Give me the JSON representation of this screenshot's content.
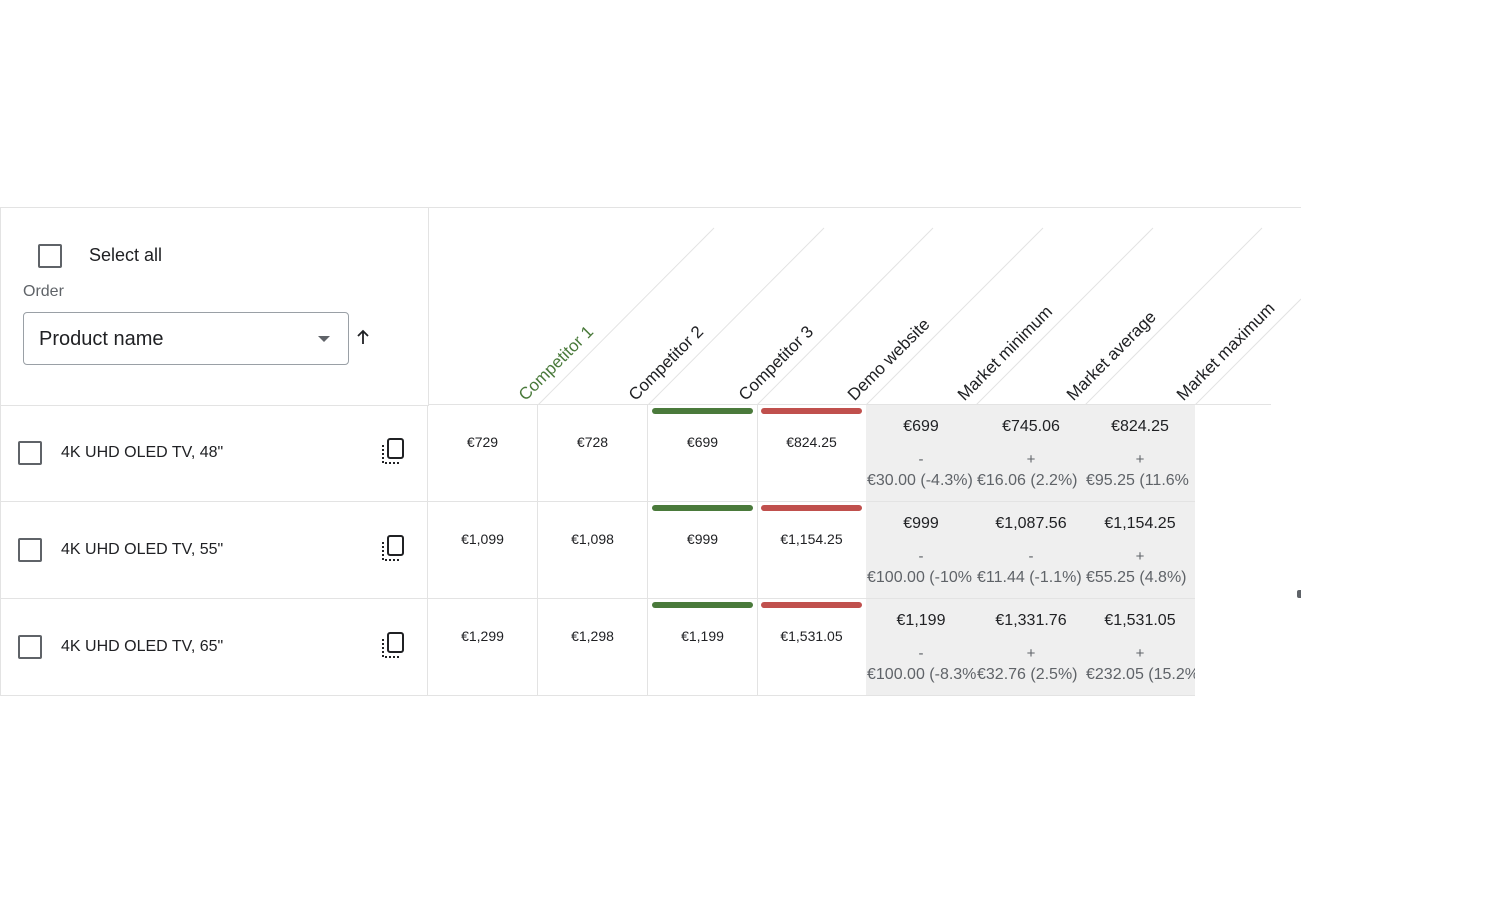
{
  "controls": {
    "select_all_label": "Select all",
    "order_label": "Order",
    "order_value": "Product name",
    "order_icon": "arrow-up-icon"
  },
  "columns": [
    {
      "label": "Competitor 1",
      "color": "#4a7a3b"
    },
    {
      "label": "Competitor 2"
    },
    {
      "label": "Competitor 3"
    },
    {
      "label": "Demo website"
    },
    {
      "label": "Market minimum"
    },
    {
      "label": "Market average"
    },
    {
      "label": "Market maximum"
    }
  ],
  "colors": {
    "lowest": "#4a7a3b",
    "highest": "#c0504d",
    "market_bg": "#efefef"
  },
  "rows": [
    {
      "name": "4K UHD OLED TV, 48\"",
      "prices": [
        "€729",
        "€728",
        "€699",
        "€824.25"
      ],
      "market": [
        {
          "value": "€699",
          "sign": "-",
          "diff": "€30.00 (-4.3%)"
        },
        {
          "value": "€745.06",
          "sign": "+",
          "diff": "€16.06 (2.2%)"
        },
        {
          "value": "€824.25",
          "sign": "+",
          "diff": "€95.25 (11.6%"
        }
      ]
    },
    {
      "name": "4K UHD OLED TV, 55\"",
      "prices": [
        "€1,099",
        "€1,098",
        "€999",
        "€1,154.25"
      ],
      "market": [
        {
          "value": "€999",
          "sign": "-",
          "diff": "€100.00 (-10%"
        },
        {
          "value": "€1,087.56",
          "sign": "-",
          "diff": "€11.44 (-1.1%)"
        },
        {
          "value": "€1,154.25",
          "sign": "+",
          "diff": "€55.25 (4.8%)"
        }
      ]
    },
    {
      "name": "4K UHD OLED TV, 65\"",
      "prices": [
        "€1,299",
        "€1,298",
        "€1,199",
        "€1,531.05"
      ],
      "market": [
        {
          "value": "€1,199",
          "sign": "-",
          "diff": "€100.00 (-8.3%"
        },
        {
          "value": "€1,331.76",
          "sign": "+",
          "diff": "€32.76 (2.5%)"
        },
        {
          "value": "€1,531.05",
          "sign": "+",
          "diff": "€232.05 (15.2%"
        }
      ]
    }
  ]
}
